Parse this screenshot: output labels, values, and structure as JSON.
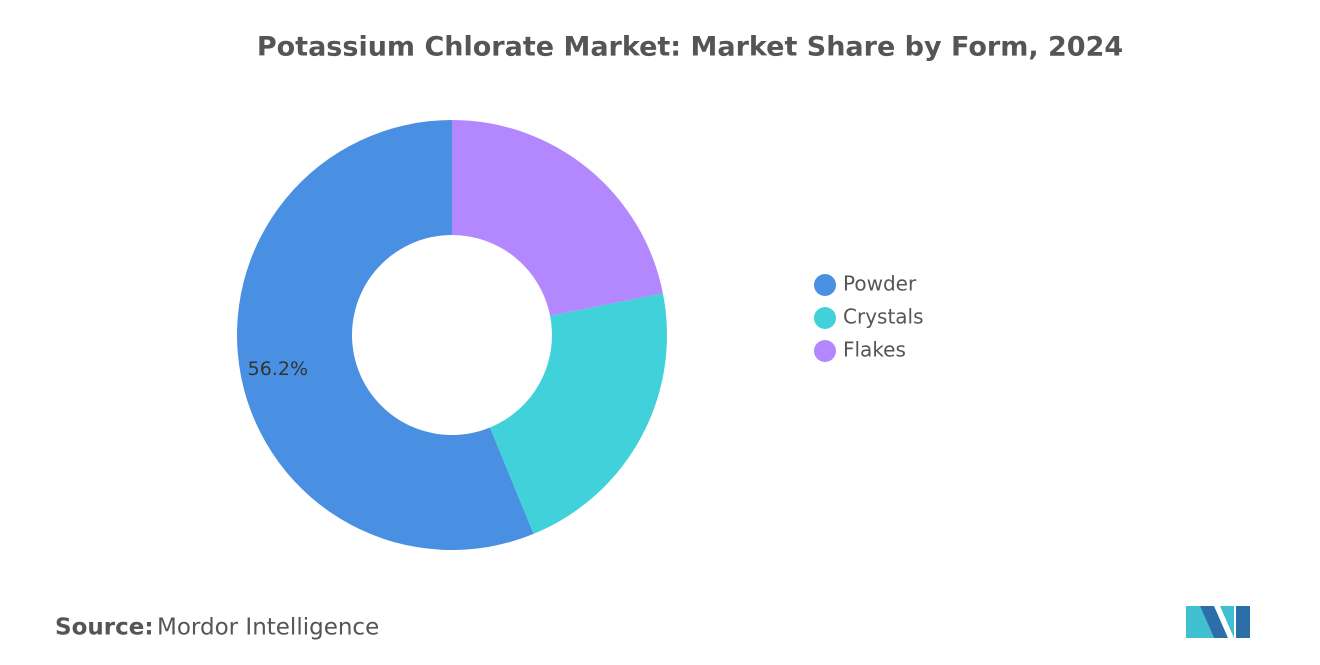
{
  "chart_data": {
    "type": "donut",
    "title": "Potassium Chlorate Market: Market Share by Form, 2024",
    "categories": [
      "Powder",
      "Crystals",
      "Flakes"
    ],
    "values": [
      56.2,
      21.9,
      21.9
    ],
    "value_labels": [
      "56.2%",
      null,
      null
    ],
    "colors": [
      "#4a90e2",
      "#40d1da",
      "#b388ff"
    ],
    "legend": "right"
  },
  "source": {
    "label": "Source:",
    "text": "Mordor Intelligence"
  }
}
